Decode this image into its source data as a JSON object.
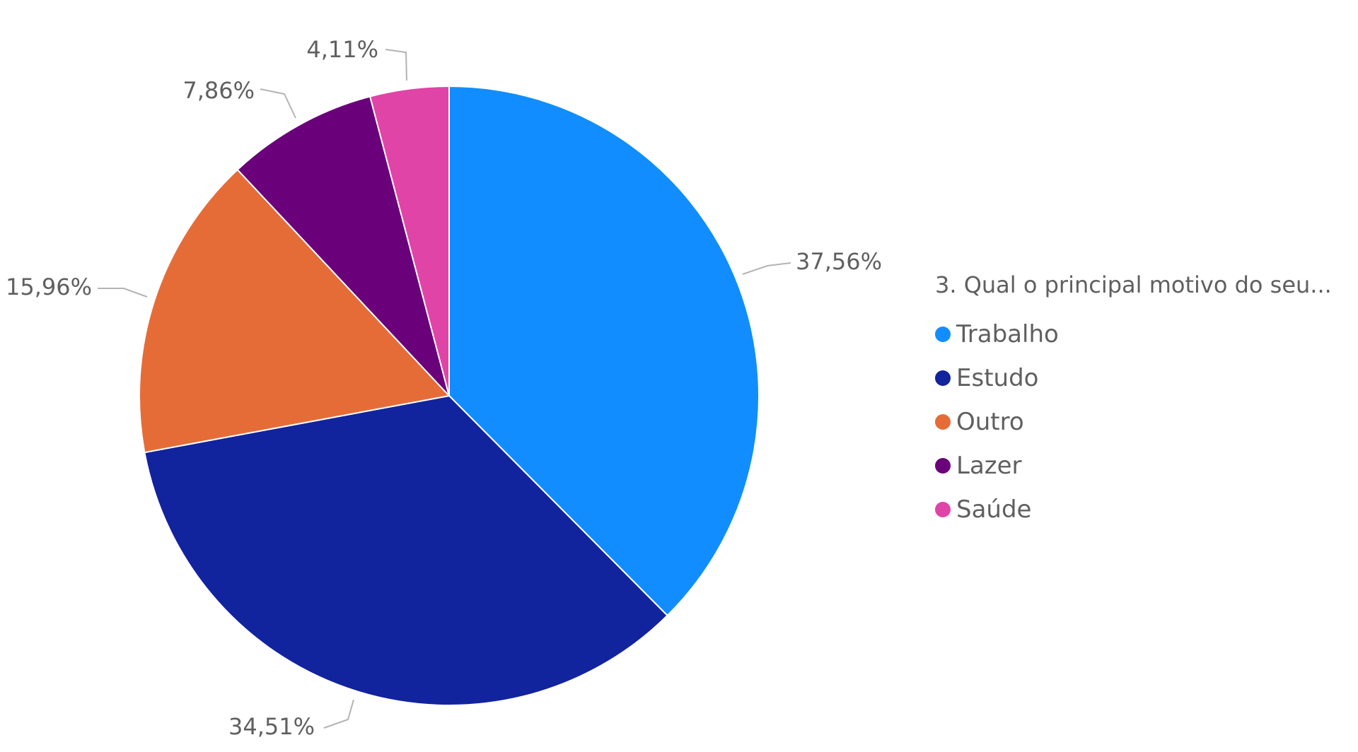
{
  "chart_data": {
    "type": "pie",
    "legend_title": "3. Qual o principal motivo do seu...",
    "legend_position": "right",
    "slices": [
      {
        "name": "Trabalho",
        "value": 37.56,
        "label": "37,56%",
        "color": "#118dff"
      },
      {
        "name": "Estudo",
        "value": 34.51,
        "label": "34,51%",
        "color": "#12239e"
      },
      {
        "name": "Outro",
        "value": 15.96,
        "label": "15,96%",
        "color": "#e66c37"
      },
      {
        "name": "Lazer",
        "value": 7.86,
        "label": "7,86%",
        "color": "#6b007b"
      },
      {
        "name": "Saúde",
        "value": 4.11,
        "label": "4,11%",
        "color": "#e044a7"
      }
    ]
  }
}
